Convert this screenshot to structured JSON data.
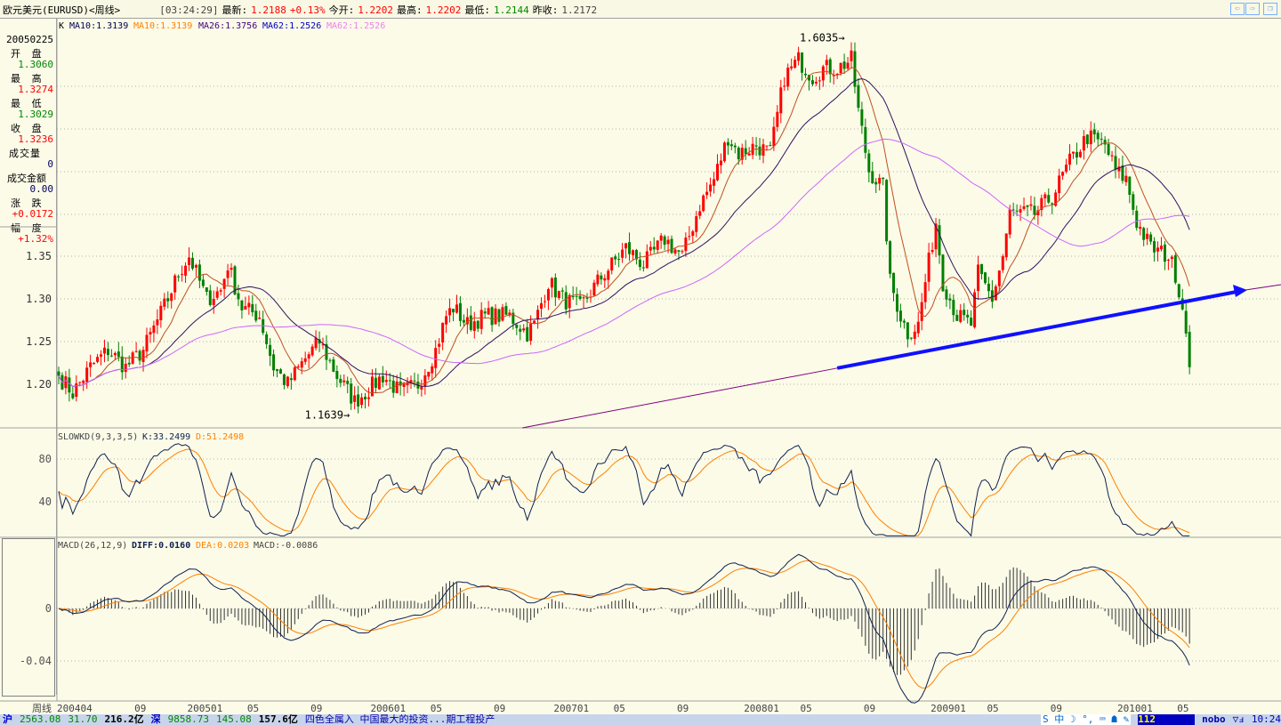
{
  "header": {
    "title": "欧元美元(EURUSD)<周线>",
    "time": "[03:24:29]",
    "latest_label": "最新:",
    "latest": "1.2188",
    "change": "+0.13%",
    "open_label": "今开:",
    "open": "1.2202",
    "high_label": "最高:",
    "high": "1.2202",
    "low_label": "最低:",
    "low": "1.2144",
    "prev_label": "昨收:",
    "prev": "1.2172"
  },
  "nav": {
    "back": "⇦",
    "forward": "⇨",
    "window": "❐"
  },
  "legend": {
    "k": "K",
    "ma10a": "MA10:1.3139",
    "ma10b": "MA10:1.3139",
    "ma26": "MA26:1.3756",
    "ma62a": "MA62:1.2526",
    "ma62b": "MA62:1.2526"
  },
  "info": {
    "date": "20050225",
    "open_label": "开 盘",
    "open": "1.3060",
    "high_label": "最 高",
    "high": "1.3274",
    "low_label": "最 低",
    "low": "1.3029",
    "close_label": "收 盘",
    "close": "1.3236",
    "vol_label": "成交量",
    "vol": "0",
    "amount_label": "成交金额",
    "amount": "0.00",
    "chg_label": "涨 跌",
    "chg": "+0.0172",
    "pct_label": "幅 度",
    "pct": "+1.32%"
  },
  "kd": {
    "title": "SLOWKD(9,3,3,5)",
    "k": "K:33.2499",
    "d": "D:51.2498"
  },
  "macd": {
    "title": "MACD(26,12,9)",
    "diff": "DIFF:0.0160",
    "dea": "DEA:0.0203",
    "macd": "MACD:-0.0086"
  },
  "axis_label": "周线",
  "status": {
    "sh_label": "沪",
    "sh": "2563.08",
    "sh_chg": "31.70",
    "sh_amt": "216.2亿",
    "sz_label": "深",
    "sz": "9858.73",
    "sz_chg": "145.08",
    "sz_amt": "157.6亿",
    "news": "四色全属入 中国最大的投资...期工程投产",
    "ime": "S 中 ☽ °, ⌨ ☗ ✎",
    "code": "112",
    "user": "nobo",
    "sig": "▽ⅎ",
    "clock": "10:24"
  },
  "chart_data": {
    "type": "candlestick",
    "title": "EURUSD weekly",
    "x_ticks": [
      {
        "w": 0,
        "label": "200404"
      },
      {
        "w": 22,
        "label": "09"
      },
      {
        "w": 37,
        "label": "200501"
      },
      {
        "w": 54,
        "label": "05"
      },
      {
        "w": 72,
        "label": "09"
      },
      {
        "w": 89,
        "label": "200601"
      },
      {
        "w": 106,
        "label": "05"
      },
      {
        "w": 124,
        "label": "09"
      },
      {
        "w": 141,
        "label": "200701"
      },
      {
        "w": 158,
        "label": "05"
      },
      {
        "w": 176,
        "label": "09"
      },
      {
        "w": 195,
        "label": "200801"
      },
      {
        "w": 211,
        "label": "05"
      },
      {
        "w": 229,
        "label": "09"
      },
      {
        "w": 248,
        "label": "200901"
      },
      {
        "w": 264,
        "label": "05"
      },
      {
        "w": 282,
        "label": "09"
      },
      {
        "w": 301,
        "label": "201001"
      },
      {
        "w": 318,
        "label": "05"
      }
    ],
    "price_ticks": [
      1.35,
      1.3,
      1.25,
      1.2
    ],
    "ylim": [
      1.147,
      1.62
    ],
    "close_waypoints": [
      [
        0,
        1.21
      ],
      [
        4,
        1.19
      ],
      [
        9,
        1.22
      ],
      [
        14,
        1.24
      ],
      [
        19,
        1.22
      ],
      [
        24,
        1.24
      ],
      [
        31,
        1.3
      ],
      [
        34,
        1.33
      ],
      [
        37,
        1.35
      ],
      [
        42,
        1.3
      ],
      [
        46,
        1.31
      ],
      [
        48,
        1.34
      ],
      [
        52,
        1.29
      ],
      [
        57,
        1.28
      ],
      [
        61,
        1.22
      ],
      [
        65,
        1.2
      ],
      [
        70,
        1.23
      ],
      [
        74,
        1.25
      ],
      [
        79,
        1.21
      ],
      [
        84,
        1.18
      ],
      [
        87,
        1.19
      ],
      [
        92,
        1.21
      ],
      [
        97,
        1.19
      ],
      [
        102,
        1.2
      ],
      [
        107,
        1.24
      ],
      [
        110,
        1.28
      ],
      [
        112,
        1.29
      ],
      [
        116,
        1.27
      ],
      [
        121,
        1.28
      ],
      [
        128,
        1.28
      ],
      [
        133,
        1.26
      ],
      [
        135,
        1.27
      ],
      [
        139,
        1.32
      ],
      [
        143,
        1.3
      ],
      [
        148,
        1.29
      ],
      [
        153,
        1.32
      ],
      [
        161,
        1.36
      ],
      [
        166,
        1.34
      ],
      [
        172,
        1.37
      ],
      [
        177,
        1.35
      ],
      [
        182,
        1.41
      ],
      [
        186,
        1.44
      ],
      [
        190,
        1.49
      ],
      [
        193,
        1.47
      ],
      [
        198,
        1.48
      ],
      [
        202,
        1.47
      ],
      [
        206,
        1.56
      ],
      [
        210,
        1.58
      ],
      [
        214,
        1.56
      ],
      [
        217,
        1.57
      ],
      [
        221,
        1.57
      ],
      [
        225,
        1.58
      ],
      [
        227,
        1.52
      ],
      [
        230,
        1.45
      ],
      [
        234,
        1.43
      ],
      [
        236,
        1.32
      ],
      [
        239,
        1.28
      ],
      [
        241,
        1.26
      ],
      [
        244,
        1.27
      ],
      [
        246,
        1.32
      ],
      [
        249,
        1.39
      ],
      [
        251,
        1.32
      ],
      [
        255,
        1.28
      ],
      [
        259,
        1.27
      ],
      [
        261,
        1.33
      ],
      [
        265,
        1.3
      ],
      [
        268,
        1.35
      ],
      [
        270,
        1.4
      ],
      [
        277,
        1.4
      ],
      [
        282,
        1.42
      ],
      [
        287,
        1.46
      ],
      [
        292,
        1.49
      ],
      [
        297,
        1.48
      ],
      [
        300,
        1.45
      ],
      [
        303,
        1.44
      ],
      [
        306,
        1.39
      ],
      [
        310,
        1.36
      ],
      [
        315,
        1.35
      ],
      [
        317,
        1.33
      ],
      [
        320,
        1.27
      ],
      [
        321,
        1.22
      ]
    ],
    "annotations": [
      {
        "label": "1.6035",
        "price": 1.6035
      },
      {
        "label": "1.1639",
        "price": 1.1639
      }
    ],
    "trendline": [
      [
        131.6,
        1.149
      ],
      [
        337.4,
        1.31
      ]
    ],
    "kd_ticks": [
      80,
      40
    ],
    "macd_ticks": [
      0,
      -0.04
    ],
    "colors": {
      "up": "#ff0000",
      "down": "#008000",
      "ma10": "#c05020",
      "ma26": "#301060",
      "ma62": "#cc66ff",
      "k": "#102050",
      "d": "#ff8000",
      "trend": "#1010ff"
    }
  }
}
